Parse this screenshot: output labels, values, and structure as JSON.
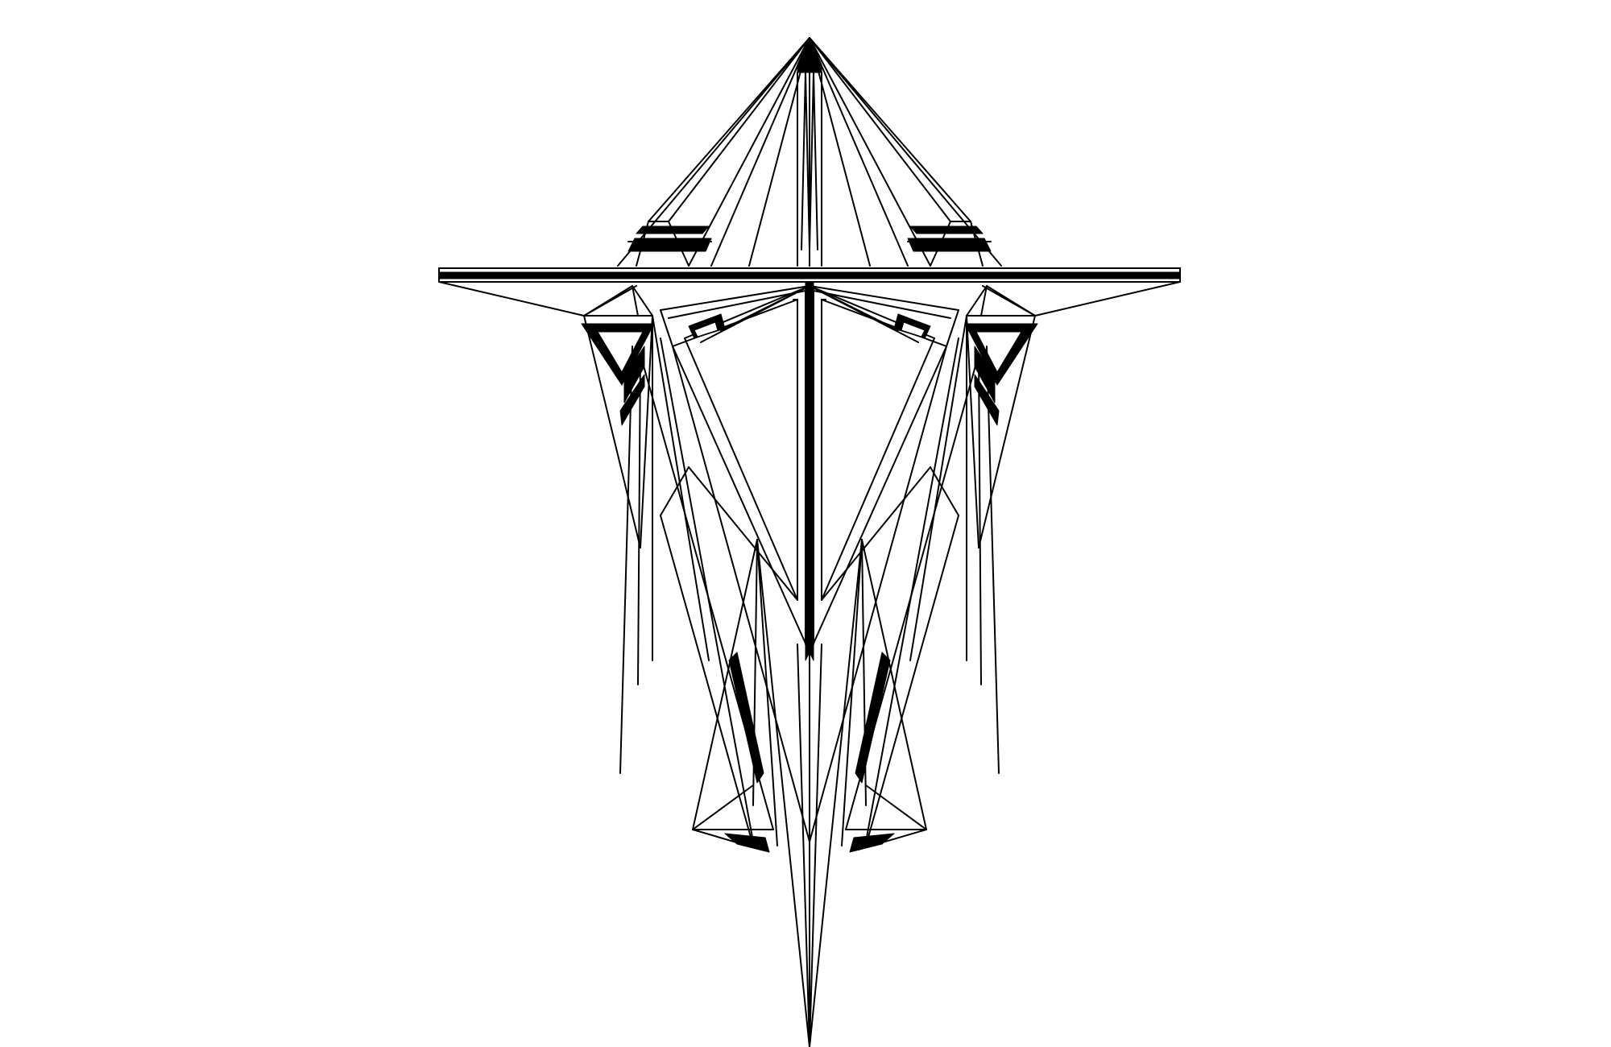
{
  "artwork": {
    "background_color": "#ffffff",
    "ink_color": "#000000",
    "icon": "geometric-symmetric-line-art"
  }
}
